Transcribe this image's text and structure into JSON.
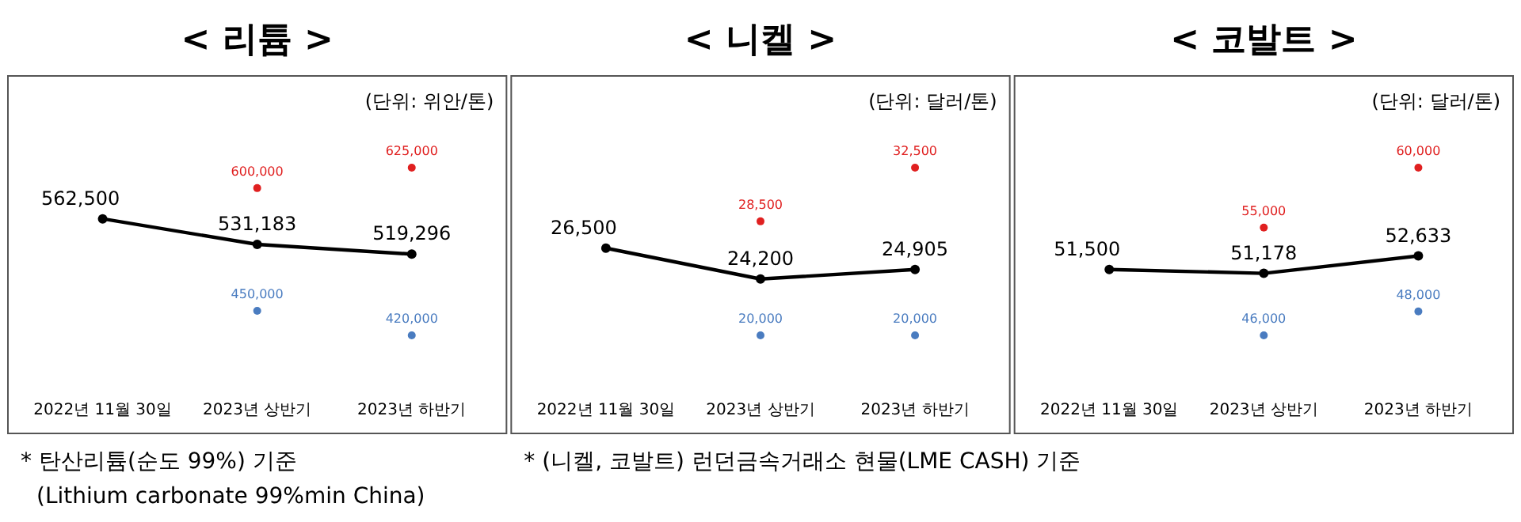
{
  "chart_data": [
    {
      "type": "line",
      "title": "< 리튬 >",
      "subtitle": "(단위: 위안/톤)",
      "categories": [
        "2022년 11월 30일",
        "2023년 상반기",
        "2023년 하반기"
      ],
      "marker": "circle",
      "series": [
        {
          "color": "#000000",
          "values": [
            562500,
            531183,
            519296
          ],
          "value_labels": [
            "562,500",
            "531,183",
            "519,296"
          ]
        },
        {
          "type": "scatter",
          "color": "#e02020",
          "values": [
            null,
            600000,
            625000
          ],
          "value_labels": [
            null,
            "600,000",
            "625,000"
          ]
        },
        {
          "type": "scatter",
          "color": "#4a7cc0",
          "values": [
            null,
            450000,
            420000
          ],
          "value_labels": [
            null,
            "450,000",
            "420,000"
          ]
        }
      ],
      "annotations": [
        "* 탄산리튬(순도 99%) 기준",
        "(Lithium carbonate 99%min China)"
      ]
    },
    {
      "type": "line",
      "title": "< 니켈 >",
      "subtitle": "(단위: 달러/톤)",
      "categories": [
        "2022년 11월 30일",
        "2023년 상반기",
        "2023년 하반기"
      ],
      "marker": "circle",
      "series": [
        {
          "color": "#000000",
          "values": [
            26500,
            24200,
            24905
          ],
          "value_labels": [
            "26,500",
            "24,200",
            "24,905"
          ]
        },
        {
          "type": "scatter",
          "color": "#e02020",
          "values": [
            null,
            28500,
            32500
          ],
          "value_labels": [
            null,
            "28,500",
            "32,500"
          ]
        },
        {
          "type": "scatter",
          "color": "#4a7cc0",
          "values": [
            null,
            20000,
            20000
          ],
          "value_labels": [
            null,
            "20,000",
            "20,000"
          ]
        }
      ],
      "annotations": [
        "* (니켈, 코발트) 런던금속거래소 현물(LME CASH) 기준"
      ]
    },
    {
      "type": "line",
      "title": "< 코발트 >",
      "subtitle": "(단위: 달러/톤)",
      "categories": [
        "2022년 11월 30일",
        "2023년 상반기",
        "2023년 하반기"
      ],
      "marker": "circle",
      "series": [
        {
          "color": "#000000",
          "values": [
            51500,
            51178,
            52633
          ],
          "value_labels": [
            "51,500",
            "51,178",
            "52,633"
          ]
        },
        {
          "type": "scatter",
          "color": "#e02020",
          "values": [
            null,
            55000,
            60000
          ],
          "value_labels": [
            null,
            "55,000",
            "60,000"
          ]
        },
        {
          "type": "scatter",
          "color": "#4a7cc0",
          "values": [
            null,
            46000,
            48000
          ],
          "value_labels": [
            null,
            "46,000",
            "48,000"
          ]
        }
      ]
    }
  ]
}
